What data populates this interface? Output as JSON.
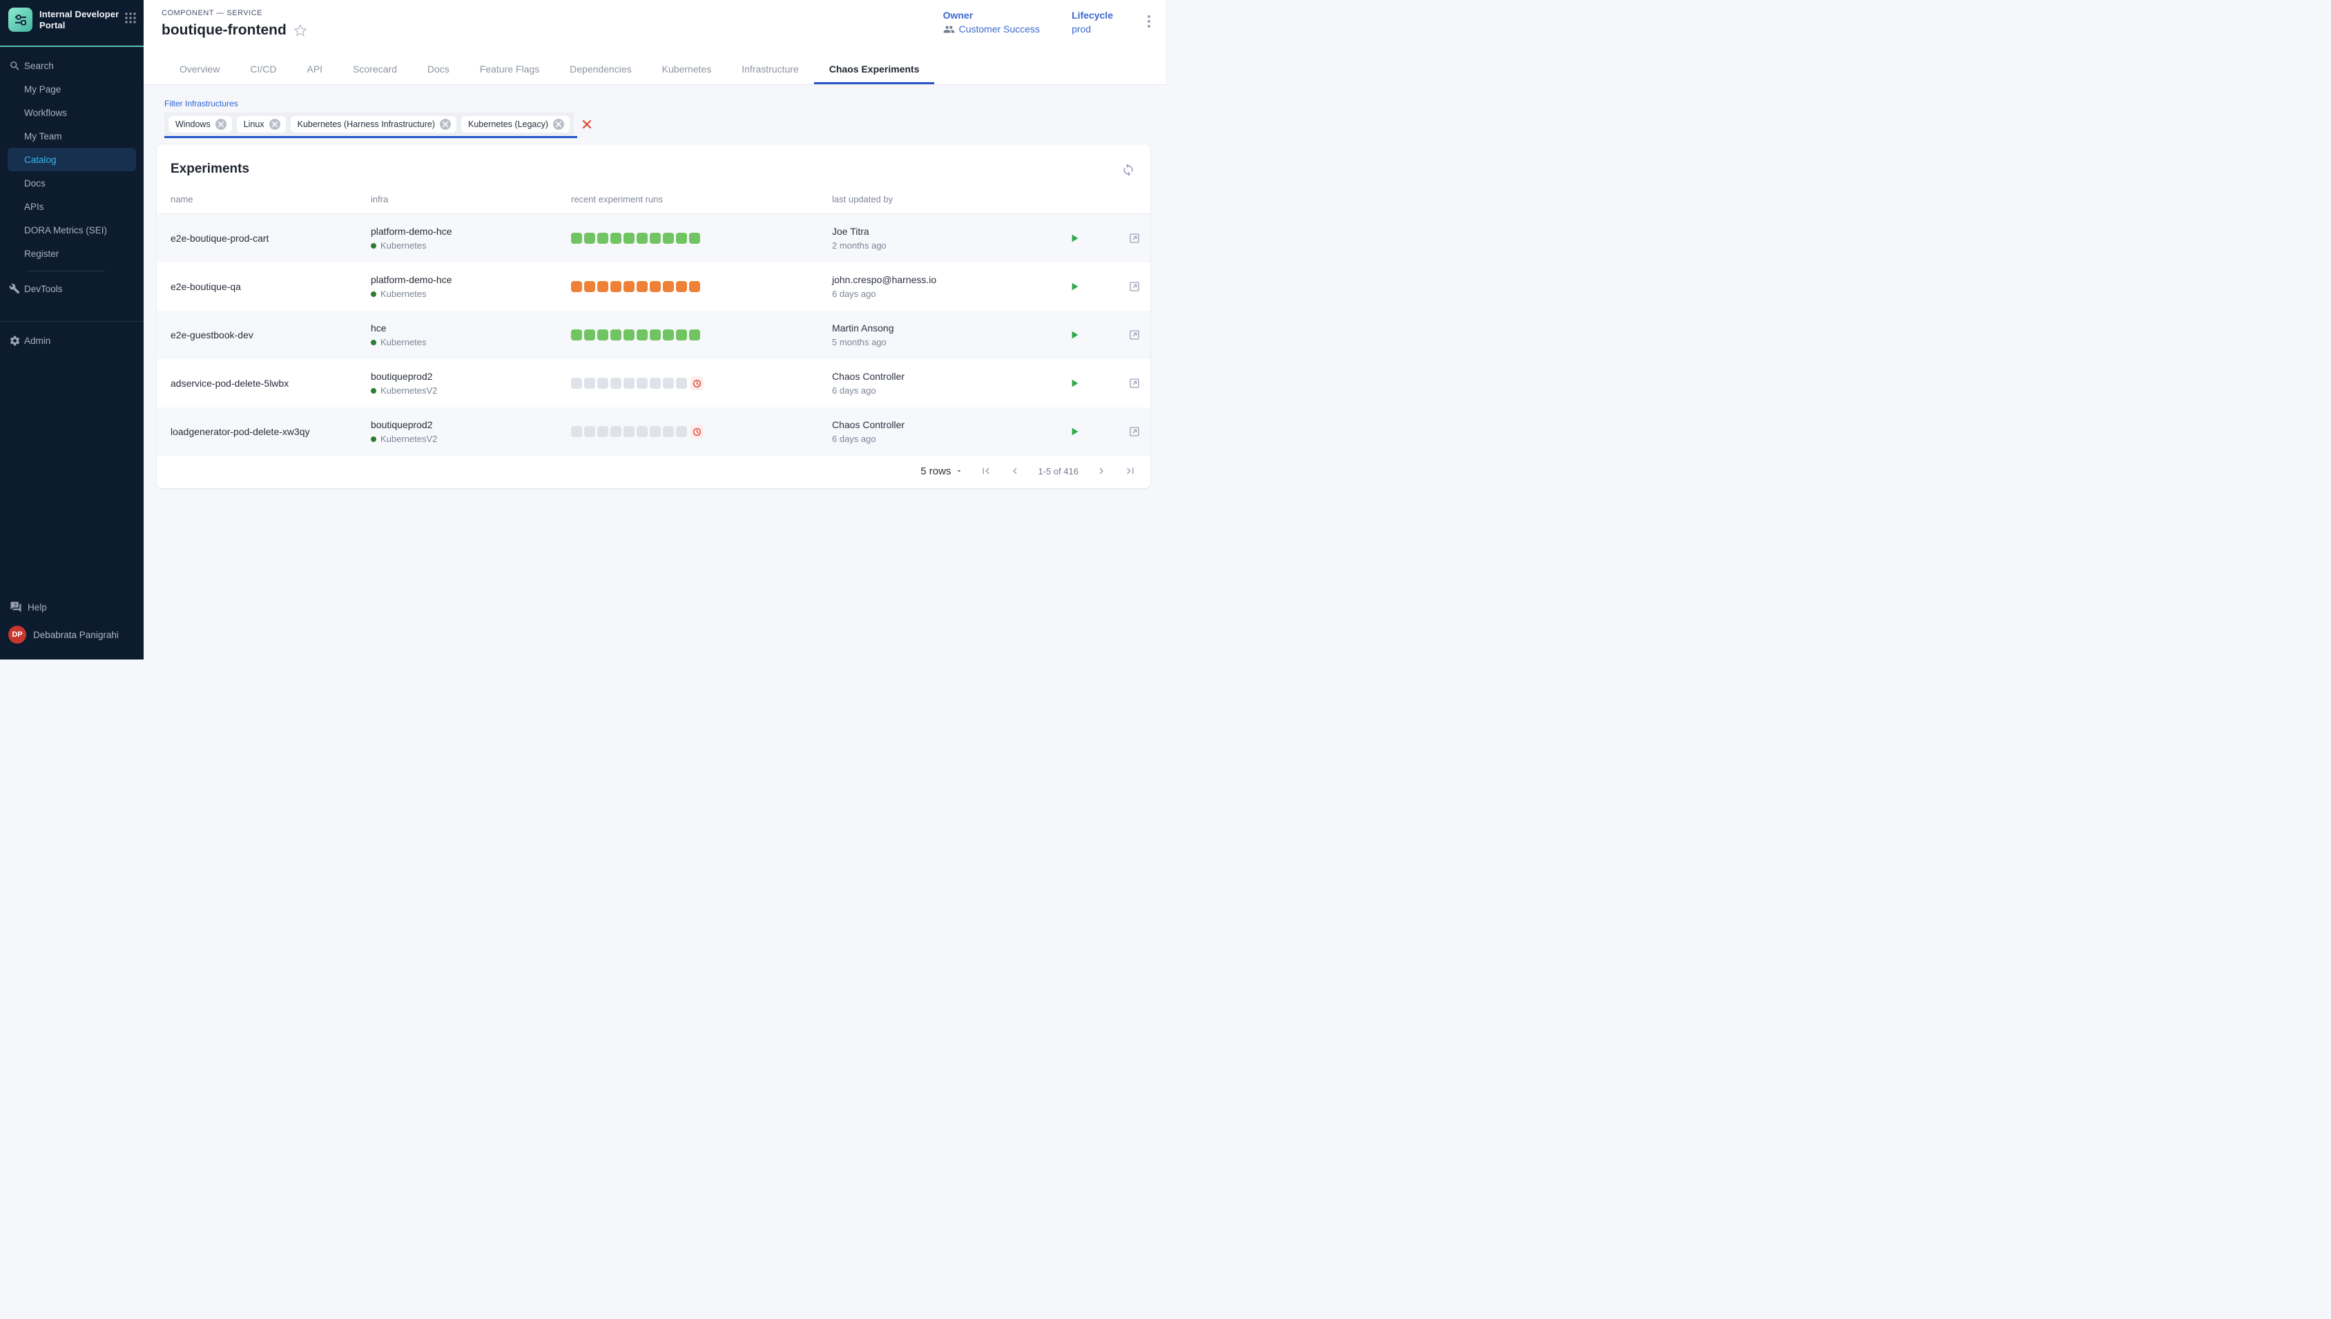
{
  "app": {
    "title": "Internal Developer Portal"
  },
  "sidebar": {
    "items": [
      {
        "label": "Search",
        "icon": "search"
      },
      {
        "label": "My Page",
        "icon": ""
      },
      {
        "label": "Workflows",
        "icon": ""
      },
      {
        "label": "My Team",
        "icon": ""
      },
      {
        "label": "Catalog",
        "icon": "",
        "active": true
      },
      {
        "label": "Docs",
        "icon": ""
      },
      {
        "label": "APIs",
        "icon": ""
      },
      {
        "label": "DORA Metrics (SEI)",
        "icon": ""
      },
      {
        "label": "Register",
        "icon": ""
      },
      {
        "label": "DevTools",
        "icon": "wrench"
      },
      {
        "label": "Admin",
        "icon": "gear"
      }
    ],
    "help_label": "Help",
    "user": {
      "initials": "DP",
      "name": "Debabrata Panigrahi"
    }
  },
  "header": {
    "kicker": "COMPONENT — SERVICE",
    "title": "boutique-frontend",
    "owner_label": "Owner",
    "owner_value": "Customer Success",
    "lifecycle_label": "Lifecycle",
    "lifecycle_value": "prod"
  },
  "tabs": [
    {
      "label": "Overview"
    },
    {
      "label": "CI/CD"
    },
    {
      "label": "API"
    },
    {
      "label": "Scorecard"
    },
    {
      "label": "Docs"
    },
    {
      "label": "Feature Flags"
    },
    {
      "label": "Dependencies"
    },
    {
      "label": "Kubernetes"
    },
    {
      "label": "Infrastructure"
    },
    {
      "label": "Chaos Experiments",
      "active": true
    }
  ],
  "filter": {
    "label": "Filter Infrastructures",
    "chips": [
      "Windows",
      "Linux",
      "Kubernetes (Harness Infrastructure)",
      "Kubernetes (Legacy)"
    ]
  },
  "experiments": {
    "title": "Experiments",
    "columns": [
      "name",
      "infra",
      "recent experiment runs",
      "last updated by"
    ],
    "rows": [
      {
        "name": "e2e-boutique-prod-cart",
        "infra": "platform-demo-hce",
        "infra_type": "Kubernetes",
        "runs_status": "passed",
        "runs_count": 10,
        "has_overdue": false,
        "updated_by": "Joe Titra",
        "updated_ago": "2 months ago"
      },
      {
        "name": "e2e-boutique-qa",
        "infra": "platform-demo-hce",
        "infra_type": "Kubernetes",
        "runs_status": "failed",
        "runs_count": 10,
        "has_overdue": false,
        "updated_by": "john.crespo@harness.io",
        "updated_ago": "6 days ago"
      },
      {
        "name": "e2e-guestbook-dev",
        "infra": "hce",
        "infra_type": "Kubernetes",
        "runs_status": "passed",
        "runs_count": 10,
        "has_overdue": false,
        "updated_by": "Martin Ansong",
        "updated_ago": "5 months ago"
      },
      {
        "name": "adservice-pod-delete-5lwbx",
        "infra": "boutiqueprod2",
        "infra_type": "KubernetesV2",
        "runs_status": "none",
        "runs_count": 9,
        "has_overdue": true,
        "updated_by": "Chaos Controller",
        "updated_ago": "6 days ago"
      },
      {
        "name": "loadgenerator-pod-delete-xw3qy",
        "infra": "boutiqueprod2",
        "infra_type": "KubernetesV2",
        "runs_status": "none",
        "runs_count": 9,
        "has_overdue": true,
        "updated_by": "Chaos Controller",
        "updated_ago": "6 days ago"
      }
    ]
  },
  "pagination": {
    "rows_label": "5 rows",
    "range": "1-5 of 416"
  },
  "colors": {
    "passed": "#70c462",
    "failed": "#ef8038",
    "none": "#dfe2e8",
    "overdue": "#d8382c",
    "accent_blue": "#2553cc",
    "sidebar_bg": "#0d1b2e",
    "teal": "#58c3ae"
  }
}
